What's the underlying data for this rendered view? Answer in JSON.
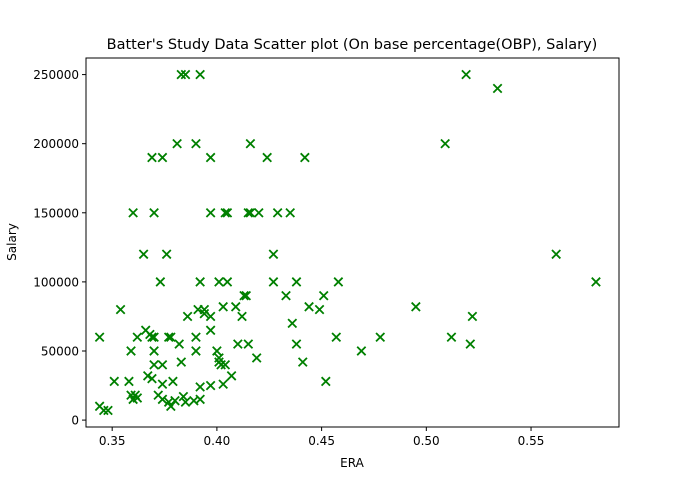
{
  "chart_data": {
    "type": "scatter",
    "title": "Batter's Study Data Scatter plot (On base percentage(OBP), Salary)",
    "xlabel": "ERA",
    "ylabel": "Salary",
    "xlim": [
      0.3375,
      0.592
    ],
    "ylim": [
      -5000,
      262000
    ],
    "xticks": [
      {
        "value": 0.35,
        "label": "0.35"
      },
      {
        "value": 0.4,
        "label": "0.40"
      },
      {
        "value": 0.45,
        "label": "0.45"
      },
      {
        "value": 0.5,
        "label": "0.50"
      },
      {
        "value": 0.55,
        "label": "0.55"
      }
    ],
    "yticks": [
      {
        "value": 0,
        "label": "0"
      },
      {
        "value": 50000,
        "label": "50000"
      },
      {
        "value": 100000,
        "label": "100000"
      },
      {
        "value": 150000,
        "label": "150000"
      },
      {
        "value": 200000,
        "label": "200000"
      },
      {
        "value": 250000,
        "label": "250000"
      }
    ],
    "marker": "x",
    "color": "#008000",
    "grid": false,
    "legend": "none",
    "points": [
      [
        0.383,
        250000
      ],
      [
        0.385,
        250000
      ],
      [
        0.392,
        250000
      ],
      [
        0.519,
        250000
      ],
      [
        0.534,
        240000
      ],
      [
        0.381,
        200000
      ],
      [
        0.39,
        200000
      ],
      [
        0.416,
        200000
      ],
      [
        0.509,
        200000
      ],
      [
        0.369,
        190000
      ],
      [
        0.374,
        190000
      ],
      [
        0.397,
        190000
      ],
      [
        0.424,
        190000
      ],
      [
        0.442,
        190000
      ],
      [
        0.36,
        150000
      ],
      [
        0.37,
        150000
      ],
      [
        0.397,
        150000
      ],
      [
        0.404,
        150000
      ],
      [
        0.405,
        150000
      ],
      [
        0.415,
        150000
      ],
      [
        0.416,
        150000
      ],
      [
        0.42,
        150000
      ],
      [
        0.429,
        150000
      ],
      [
        0.435,
        150000
      ],
      [
        0.365,
        120000
      ],
      [
        0.376,
        120000
      ],
      [
        0.427,
        120000
      ],
      [
        0.562,
        120000
      ],
      [
        0.373,
        100000
      ],
      [
        0.392,
        100000
      ],
      [
        0.401,
        100000
      ],
      [
        0.405,
        100000
      ],
      [
        0.427,
        100000
      ],
      [
        0.438,
        100000
      ],
      [
        0.458,
        100000
      ],
      [
        0.581,
        100000
      ],
      [
        0.413,
        90000
      ],
      [
        0.414,
        90000
      ],
      [
        0.433,
        90000
      ],
      [
        0.451,
        90000
      ],
      [
        0.354,
        80000
      ],
      [
        0.391,
        80000
      ],
      [
        0.394,
        80000
      ],
      [
        0.403,
        82000
      ],
      [
        0.409,
        82000
      ],
      [
        0.444,
        82000
      ],
      [
        0.449,
        80000
      ],
      [
        0.495,
        82000
      ],
      [
        0.386,
        75000
      ],
      [
        0.394,
        77000
      ],
      [
        0.397,
        75000
      ],
      [
        0.412,
        75000
      ],
      [
        0.436,
        70000
      ],
      [
        0.522,
        75000
      ],
      [
        0.344,
        60000
      ],
      [
        0.362,
        60000
      ],
      [
        0.366,
        65000
      ],
      [
        0.368,
        62000
      ],
      [
        0.369,
        60000
      ],
      [
        0.37,
        60000
      ],
      [
        0.377,
        60000
      ],
      [
        0.378,
        60000
      ],
      [
        0.39,
        60000
      ],
      [
        0.397,
        65000
      ],
      [
        0.457,
        60000
      ],
      [
        0.478,
        60000
      ],
      [
        0.512,
        60000
      ],
      [
        0.359,
        50000
      ],
      [
        0.37,
        50000
      ],
      [
        0.382,
        55000
      ],
      [
        0.39,
        50000
      ],
      [
        0.4,
        50000
      ],
      [
        0.401,
        45000
      ],
      [
        0.41,
        55000
      ],
      [
        0.415,
        55000
      ],
      [
        0.419,
        45000
      ],
      [
        0.438,
        55000
      ],
      [
        0.469,
        50000
      ],
      [
        0.521,
        55000
      ],
      [
        0.37,
        40000
      ],
      [
        0.374,
        40000
      ],
      [
        0.383,
        42000
      ],
      [
        0.401,
        42000
      ],
      [
        0.402,
        40000
      ],
      [
        0.404,
        40000
      ],
      [
        0.441,
        42000
      ],
      [
        0.351,
        28000
      ],
      [
        0.358,
        28000
      ],
      [
        0.367,
        32000
      ],
      [
        0.369,
        30000
      ],
      [
        0.374,
        26000
      ],
      [
        0.379,
        28000
      ],
      [
        0.392,
        24000
      ],
      [
        0.397,
        25000
      ],
      [
        0.403,
        26000
      ],
      [
        0.407,
        32000
      ],
      [
        0.452,
        28000
      ],
      [
        0.359,
        18000
      ],
      [
        0.36,
        15000
      ],
      [
        0.361,
        18000
      ],
      [
        0.362,
        16000
      ],
      [
        0.372,
        18000
      ],
      [
        0.374,
        15000
      ],
      [
        0.377,
        13000
      ],
      [
        0.378,
        10000
      ],
      [
        0.38,
        14000
      ],
      [
        0.384,
        17000
      ],
      [
        0.385,
        13000
      ],
      [
        0.389,
        14000
      ],
      [
        0.392,
        15000
      ],
      [
        0.344,
        10000
      ],
      [
        0.346,
        7000
      ],
      [
        0.348,
        7000
      ]
    ]
  }
}
